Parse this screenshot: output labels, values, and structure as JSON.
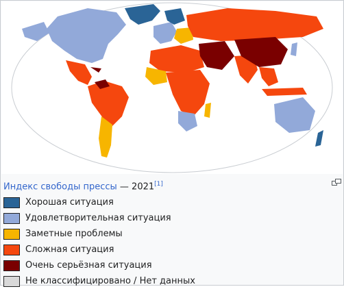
{
  "caption": {
    "link_text": "Индекс свободы прессы",
    "separator": " — ",
    "year": "2021",
    "ref": "[1]"
  },
  "legend": [
    {
      "label": "Хорошая ситуация",
      "color": "#2a6496"
    },
    {
      "label": "Удовлетворительная ситуация",
      "color": "#92a9d9"
    },
    {
      "label": "Заметные проблемы",
      "color": "#f7b500"
    },
    {
      "label": "Сложная ситуация",
      "color": "#f5470e"
    },
    {
      "label": "Очень серьёзная ситуация",
      "color": "#7a0000"
    },
    {
      "label": "Не классифицировано / Нет данных",
      "color": "#d9d9d9"
    }
  ],
  "map": {
    "ocean_color": "#ffffff",
    "outline_color": "#c8ccd1",
    "magnify_icon": "magnify-icon"
  }
}
